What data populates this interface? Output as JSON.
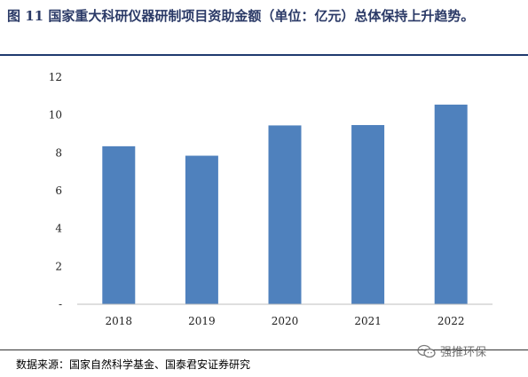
{
  "header": {
    "title": "图 11 国家重大科研仪器研制项目资助金额（单位：亿元）总体保持上升趋势。"
  },
  "footer": {
    "source": "数据来源：国家自然科学基金、国泰君安证券研究",
    "watermark": "强推环保",
    "watermark_icon": "wechat-icon"
  },
  "colors": {
    "bar": "#4f81bd",
    "title": "#2b3a67",
    "rule": "#1f3a6e"
  },
  "chart_data": {
    "type": "bar",
    "categories": [
      "2018",
      "2019",
      "2020",
      "2021",
      "2022"
    ],
    "values": [
      8.35,
      7.85,
      9.45,
      9.47,
      10.55
    ],
    "title": "",
    "xlabel": "",
    "ylabel": "",
    "ylim": [
      0,
      12
    ],
    "yticks": [
      0,
      2,
      4,
      6,
      8,
      10,
      12
    ],
    "ytick_labels": [
      "-",
      "2",
      "4",
      "6",
      "8",
      "10",
      "12"
    ],
    "grid": false,
    "legend": "none"
  }
}
